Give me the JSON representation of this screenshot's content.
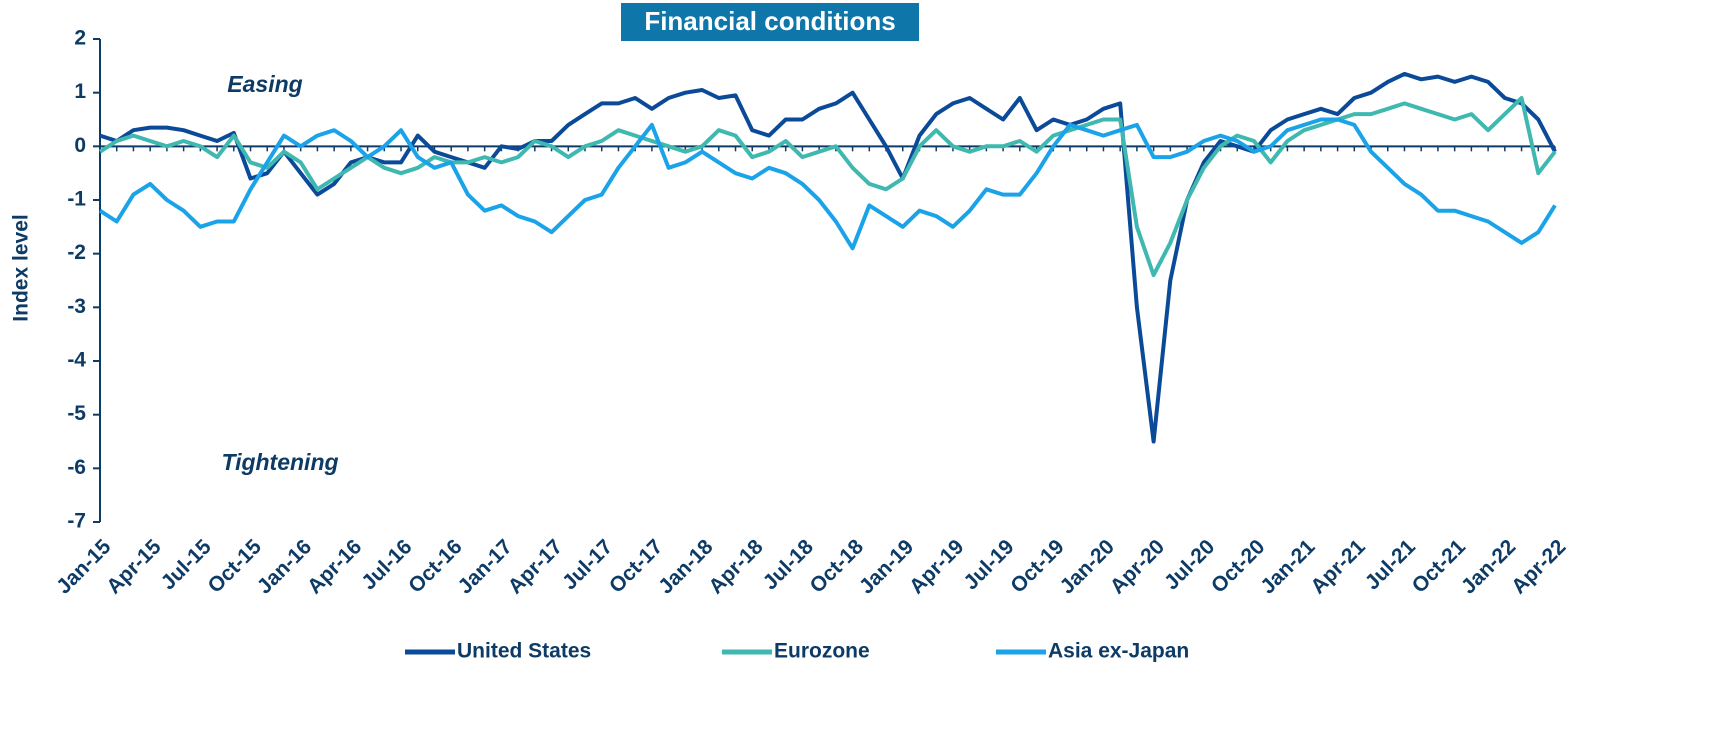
{
  "chart_data": {
    "type": "line",
    "title": "Financial conditions",
    "ylabel": "Index level",
    "annotations": [
      "Easing",
      "Tightening"
    ],
    "categories": [
      "Jan-15",
      null,
      null,
      "Apr-15",
      null,
      null,
      "Jul-15",
      null,
      null,
      "Oct-15",
      null,
      null,
      "Jan-16",
      null,
      null,
      "Apr-16",
      null,
      null,
      "Jul-16",
      null,
      null,
      "Oct-16",
      null,
      null,
      "Jan-17",
      null,
      null,
      "Apr-17",
      null,
      null,
      "Jul-17",
      null,
      null,
      "Oct-17",
      null,
      null,
      "Jan-18",
      null,
      null,
      "Apr-18",
      null,
      null,
      "Jul-18",
      null,
      null,
      "Oct-18",
      null,
      null,
      "Jan-19",
      null,
      null,
      "Apr-19",
      null,
      null,
      "Jul-19",
      null,
      null,
      "Oct-19",
      null,
      null,
      "Jan-20",
      null,
      null,
      "Apr-20",
      null,
      null,
      "Jul-20",
      null,
      null,
      "Oct-20",
      null,
      null,
      "Jan-21",
      null,
      null,
      "Apr-21",
      null,
      null,
      "Jul-21",
      null,
      null,
      "Oct-21",
      null,
      null,
      "Jan-22",
      null,
      null,
      "Apr-22"
    ],
    "series": [
      {
        "name": "United States",
        "color": "#0b4a98",
        "values": [
          0.2,
          0.1,
          0.3,
          0.35,
          0.35,
          0.3,
          0.2,
          0.1,
          0.25,
          -0.6,
          -0.5,
          -0.1,
          -0.5,
          -0.9,
          -0.7,
          -0.3,
          -0.2,
          -0.3,
          -0.3,
          0.2,
          -0.1,
          -0.2,
          -0.3,
          -0.4,
          0.0,
          -0.05,
          0.1,
          0.1,
          0.4,
          0.6,
          0.8,
          0.8,
          0.9,
          0.7,
          0.9,
          1.0,
          1.05,
          0.9,
          0.95,
          0.3,
          0.2,
          0.5,
          0.5,
          0.7,
          0.8,
          1.0,
          0.5,
          0.0,
          -0.6,
          0.2,
          0.6,
          0.8,
          0.9,
          0.7,
          0.5,
          0.9,
          0.3,
          0.5,
          0.4,
          0.5,
          0.7,
          0.8,
          -3.0,
          -5.5,
          -2.5,
          -1.0,
          -0.3,
          0.1,
          0.0,
          -0.1,
          0.3,
          0.5,
          0.6,
          0.7,
          0.6,
          0.9,
          1.0,
          1.2,
          1.35,
          1.25,
          1.3,
          1.2,
          1.3,
          1.2,
          0.9,
          0.8,
          0.5,
          -0.1
        ]
      },
      {
        "name": "Eurozone",
        "color": "#3fb8b0",
        "values": [
          -0.1,
          0.1,
          0.2,
          0.1,
          0.0,
          0.1,
          0.0,
          -0.2,
          0.2,
          -0.3,
          -0.4,
          -0.1,
          -0.3,
          -0.8,
          -0.6,
          -0.4,
          -0.2,
          -0.4,
          -0.5,
          -0.4,
          -0.2,
          -0.3,
          -0.3,
          -0.2,
          -0.3,
          -0.2,
          0.1,
          0.0,
          -0.2,
          0.0,
          0.1,
          0.3,
          0.2,
          0.1,
          0.0,
          -0.1,
          0.0,
          0.3,
          0.2,
          -0.2,
          -0.1,
          0.1,
          -0.2,
          -0.1,
          0.0,
          -0.4,
          -0.7,
          -0.8,
          -0.6,
          0.0,
          0.3,
          0.0,
          -0.1,
          0.0,
          0.0,
          0.1,
          -0.1,
          0.2,
          0.3,
          0.4,
          0.5,
          0.5,
          -1.5,
          -2.4,
          -1.8,
          -1.0,
          -0.4,
          0.0,
          0.2,
          0.1,
          -0.3,
          0.1,
          0.3,
          0.4,
          0.5,
          0.6,
          0.6,
          0.7,
          0.8,
          0.7,
          0.6,
          0.5,
          0.6,
          0.3,
          0.6,
          0.9,
          -0.5,
          -0.1
        ]
      },
      {
        "name": "Asia ex-Japan",
        "color": "#1aa3e8",
        "values": [
          -1.2,
          -1.4,
          -0.9,
          -0.7,
          -1.0,
          -1.2,
          -1.5,
          -1.4,
          -1.4,
          -0.8,
          -0.3,
          0.2,
          0.0,
          0.2,
          0.3,
          0.1,
          -0.2,
          0.0,
          0.3,
          -0.2,
          -0.4,
          -0.3,
          -0.9,
          -1.2,
          -1.1,
          -1.3,
          -1.4,
          -1.6,
          -1.3,
          -1.0,
          -0.9,
          -0.4,
          0.0,
          0.4,
          -0.4,
          -0.3,
          -0.1,
          -0.3,
          -0.5,
          -0.6,
          -0.4,
          -0.5,
          -0.7,
          -1.0,
          -1.4,
          -1.9,
          -1.1,
          -1.3,
          -1.5,
          -1.2,
          -1.3,
          -1.5,
          -1.2,
          -0.8,
          -0.9,
          -0.9,
          -0.5,
          0.0,
          0.4,
          0.3,
          0.2,
          0.3,
          0.4,
          -0.2,
          -0.2,
          -0.1,
          0.1,
          0.2,
          0.1,
          -0.1,
          0.0,
          0.3,
          0.4,
          0.5,
          0.5,
          0.4,
          -0.1,
          -0.4,
          -0.7,
          -0.9,
          -1.2,
          -1.2,
          -1.3,
          -1.4,
          -1.6,
          -1.8,
          -1.6,
          -1.1
        ]
      }
    ],
    "ylim": [
      -7,
      2
    ],
    "yticks": [
      -7,
      -6,
      -5,
      -4,
      -3,
      -2,
      -1,
      0,
      1,
      2
    ],
    "legend": "bottom"
  }
}
